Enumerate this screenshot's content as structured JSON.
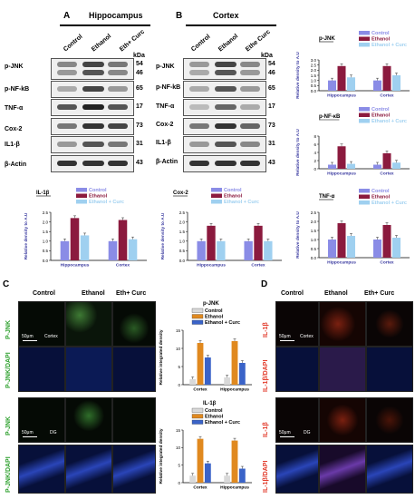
{
  "panelA": {
    "letter": "A",
    "header": "Hippocampus",
    "columns": [
      "Control",
      "Ethanol",
      "Eth+ Curc"
    ],
    "proteins": [
      "p-JNK",
      "p-NF-kB",
      "TNF-α",
      "Cox-2",
      "IL1-β",
      "β-Actin"
    ],
    "kda_title": "kDa",
    "kda": [
      "54",
      "46",
      "65",
      "17",
      "73",
      "31",
      "43"
    ]
  },
  "panelB": {
    "letter": "B",
    "header": "Cortex",
    "columns": [
      "Control",
      "Ethanol",
      "Ethe Curc"
    ],
    "proteins": [
      "p-JNK",
      "p-NF-kB",
      "TNF-α",
      "Cox-2",
      "IL1-β",
      "β-Actin"
    ],
    "kda_title": "kDa",
    "kda": [
      "54",
      "46",
      "65",
      "17",
      "73",
      "31",
      "43"
    ]
  },
  "panelC": {
    "letter": "C",
    "columns": [
      "Control",
      "Ethanol",
      "Eth+ Curc"
    ],
    "row_labels": [
      "P-JNK",
      "P-JNK/DAPI",
      "P-JNK",
      "P-JNK/DAPI"
    ],
    "scale": "50μm",
    "region_top": "Cortex",
    "region_bottom": "DG"
  },
  "panelD": {
    "letter": "D",
    "columns": [
      "Control",
      "Ethanol",
      "Eth+ Curc"
    ],
    "row_labels": [
      "IL-1β",
      "IL-1β/DAPI",
      "IL-1β",
      "IL-1β/DAPI"
    ],
    "scale": "50μm",
    "region_top": "Cortex",
    "region_bottom": "DG"
  },
  "colors": {
    "control": "#8a8ce6",
    "ethanol": "#8b1a3e",
    "curc": "#9fd0f0",
    "bar_control": "#d9d9d9",
    "bar_ethanol": "#e0891f",
    "bar_curc": "#3a63c8"
  },
  "chart_data": [
    {
      "type": "bar",
      "title": "p-JNK",
      "categories": [
        "Hippocampus",
        "Cortex"
      ],
      "ylabel": "Relative density to A.U",
      "ylim": [
        0,
        3
      ],
      "ticks": [
        "0.0",
        "0.5",
        "1.0",
        "1.5",
        "2.0",
        "2.5",
        "3.0"
      ],
      "series": [
        {
          "name": "Control",
          "values": [
            1.0,
            1.0
          ]
        },
        {
          "name": "Ethanol",
          "values": [
            2.4,
            2.4
          ]
        },
        {
          "name": "Ethanol + Curc",
          "values": [
            1.3,
            1.5
          ]
        }
      ]
    },
    {
      "type": "bar",
      "title": "p-NF-κB",
      "categories": [
        "Hippocampus",
        "Cortex"
      ],
      "ylabel": "Relative density to A.U",
      "ylim": [
        0,
        8
      ],
      "ticks": [
        "0",
        "2",
        "4",
        "6",
        "8"
      ],
      "series": [
        {
          "name": "Control",
          "values": [
            1.0,
            1.0
          ]
        },
        {
          "name": "Ethanol",
          "values": [
            5.5,
            3.8
          ]
        },
        {
          "name": "Ethanol + Curc",
          "values": [
            1.2,
            1.5
          ]
        }
      ]
    },
    {
      "type": "bar",
      "title": "TNF-α",
      "categories": [
        "Hippocampus",
        "Cortex"
      ],
      "ylabel": "Relative density to A.U",
      "ylim": [
        0,
        2.5
      ],
      "ticks": [
        "0.0",
        "0.5",
        "1.0",
        "1.5",
        "2.0",
        "2.5"
      ],
      "series": [
        {
          "name": "Control",
          "values": [
            1.0,
            1.0
          ]
        },
        {
          "name": "Ethanol",
          "values": [
            1.9,
            1.8
          ]
        },
        {
          "name": "Ethanol + Curc",
          "values": [
            1.2,
            1.1
          ]
        }
      ]
    },
    {
      "type": "bar",
      "title": "IL-1β",
      "categories": [
        "Hippocampus",
        "Cortex"
      ],
      "ylabel": "Relative density to A.U",
      "ylim": [
        0,
        2.5
      ],
      "ticks": [
        "0.0",
        "0.5",
        "1.0",
        "1.5",
        "2.0",
        "2.5"
      ],
      "series": [
        {
          "name": "Control",
          "values": [
            1.0,
            1.0
          ]
        },
        {
          "name": "Ethanol",
          "values": [
            2.2,
            2.1
          ]
        },
        {
          "name": "Ethanol + Curc",
          "values": [
            1.3,
            1.1
          ]
        }
      ]
    },
    {
      "type": "bar",
      "title": "Cox-2",
      "categories": [
        "Hippocampus",
        "Cortex"
      ],
      "ylabel": "Relative density to A.U",
      "ylim": [
        0,
        2.5
      ],
      "ticks": [
        "0.0",
        "0.5",
        "1.0",
        "1.5",
        "2.0",
        "2.5"
      ],
      "series": [
        {
          "name": "Control",
          "values": [
            1.0,
            1.0
          ]
        },
        {
          "name": "Ethanol",
          "values": [
            1.8,
            1.8
          ]
        },
        {
          "name": "Ethanol + Curc",
          "values": [
            1.0,
            1.0
          ]
        }
      ]
    },
    {
      "type": "bar",
      "title": "p-JNK",
      "categories": [
        "Cortex",
        "Hippocampus"
      ],
      "ylabel": "Relative integrated density",
      "ylim": [
        0,
        15
      ],
      "ticks": [
        "0",
        "5",
        "10",
        "15"
      ],
      "series": [
        {
          "name": "Control",
          "values": [
            1.5,
            2.0
          ]
        },
        {
          "name": "Ethanol",
          "values": [
            11.5,
            12.0
          ]
        },
        {
          "name": "Ethanol + Curc",
          "values": [
            7.5,
            6.0
          ]
        }
      ]
    },
    {
      "type": "bar",
      "title": "IL-1β",
      "categories": [
        "Cortex",
        "Hippocampus"
      ],
      "ylabel": "Relative integrated density",
      "ylim": [
        0,
        15
      ],
      "ticks": [
        "0",
        "5",
        "10",
        "15"
      ],
      "series": [
        {
          "name": "Control",
          "values": [
            2.0,
            2.0
          ]
        },
        {
          "name": "Ethanol",
          "values": [
            12.5,
            12.0
          ]
        },
        {
          "name": "Ethanol + Curc",
          "values": [
            5.5,
            4.0
          ]
        }
      ]
    }
  ]
}
